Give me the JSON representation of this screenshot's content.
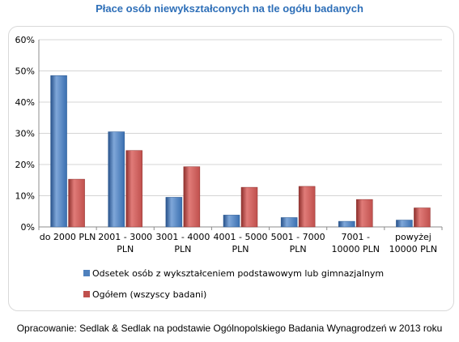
{
  "title": "Płace osób niewykształconych na tle ogółu badanych",
  "source": "Opracowanie: Sedlak & Sedlak na podstawie Ogólnopolskiego Badania Wynagrodzeń w 2013 roku",
  "chart_data": {
    "type": "bar",
    "categories": [
      [
        "do 2000 PLN"
      ],
      [
        "2001 - 3000",
        "PLN"
      ],
      [
        "3001 - 4000",
        "PLN"
      ],
      [
        "4001 - 5000",
        "PLN"
      ],
      [
        "5001 - 7000",
        "PLN"
      ],
      [
        "7001 -",
        "10000 PLN"
      ],
      [
        "powyżej",
        "10000 PLN"
      ]
    ],
    "series": [
      {
        "name": "Odsetek osób z wykształceniem podstawowym lub gimnazjalnym",
        "color": "#4f81bd",
        "values": [
          48.5,
          30.5,
          9.5,
          3.8,
          3.0,
          1.8,
          2.2
        ]
      },
      {
        "name": "Ogółem (wszyscy badani)",
        "color": "#c0504d",
        "values": [
          15.3,
          24.5,
          19.3,
          12.7,
          13.0,
          8.8,
          6.1
        ]
      }
    ],
    "ylim": [
      0,
      60
    ],
    "yticks": [
      "0%",
      "10%",
      "20%",
      "30%",
      "40%",
      "50%",
      "60%"
    ],
    "grid": true,
    "legend_position": "bottom-left"
  }
}
